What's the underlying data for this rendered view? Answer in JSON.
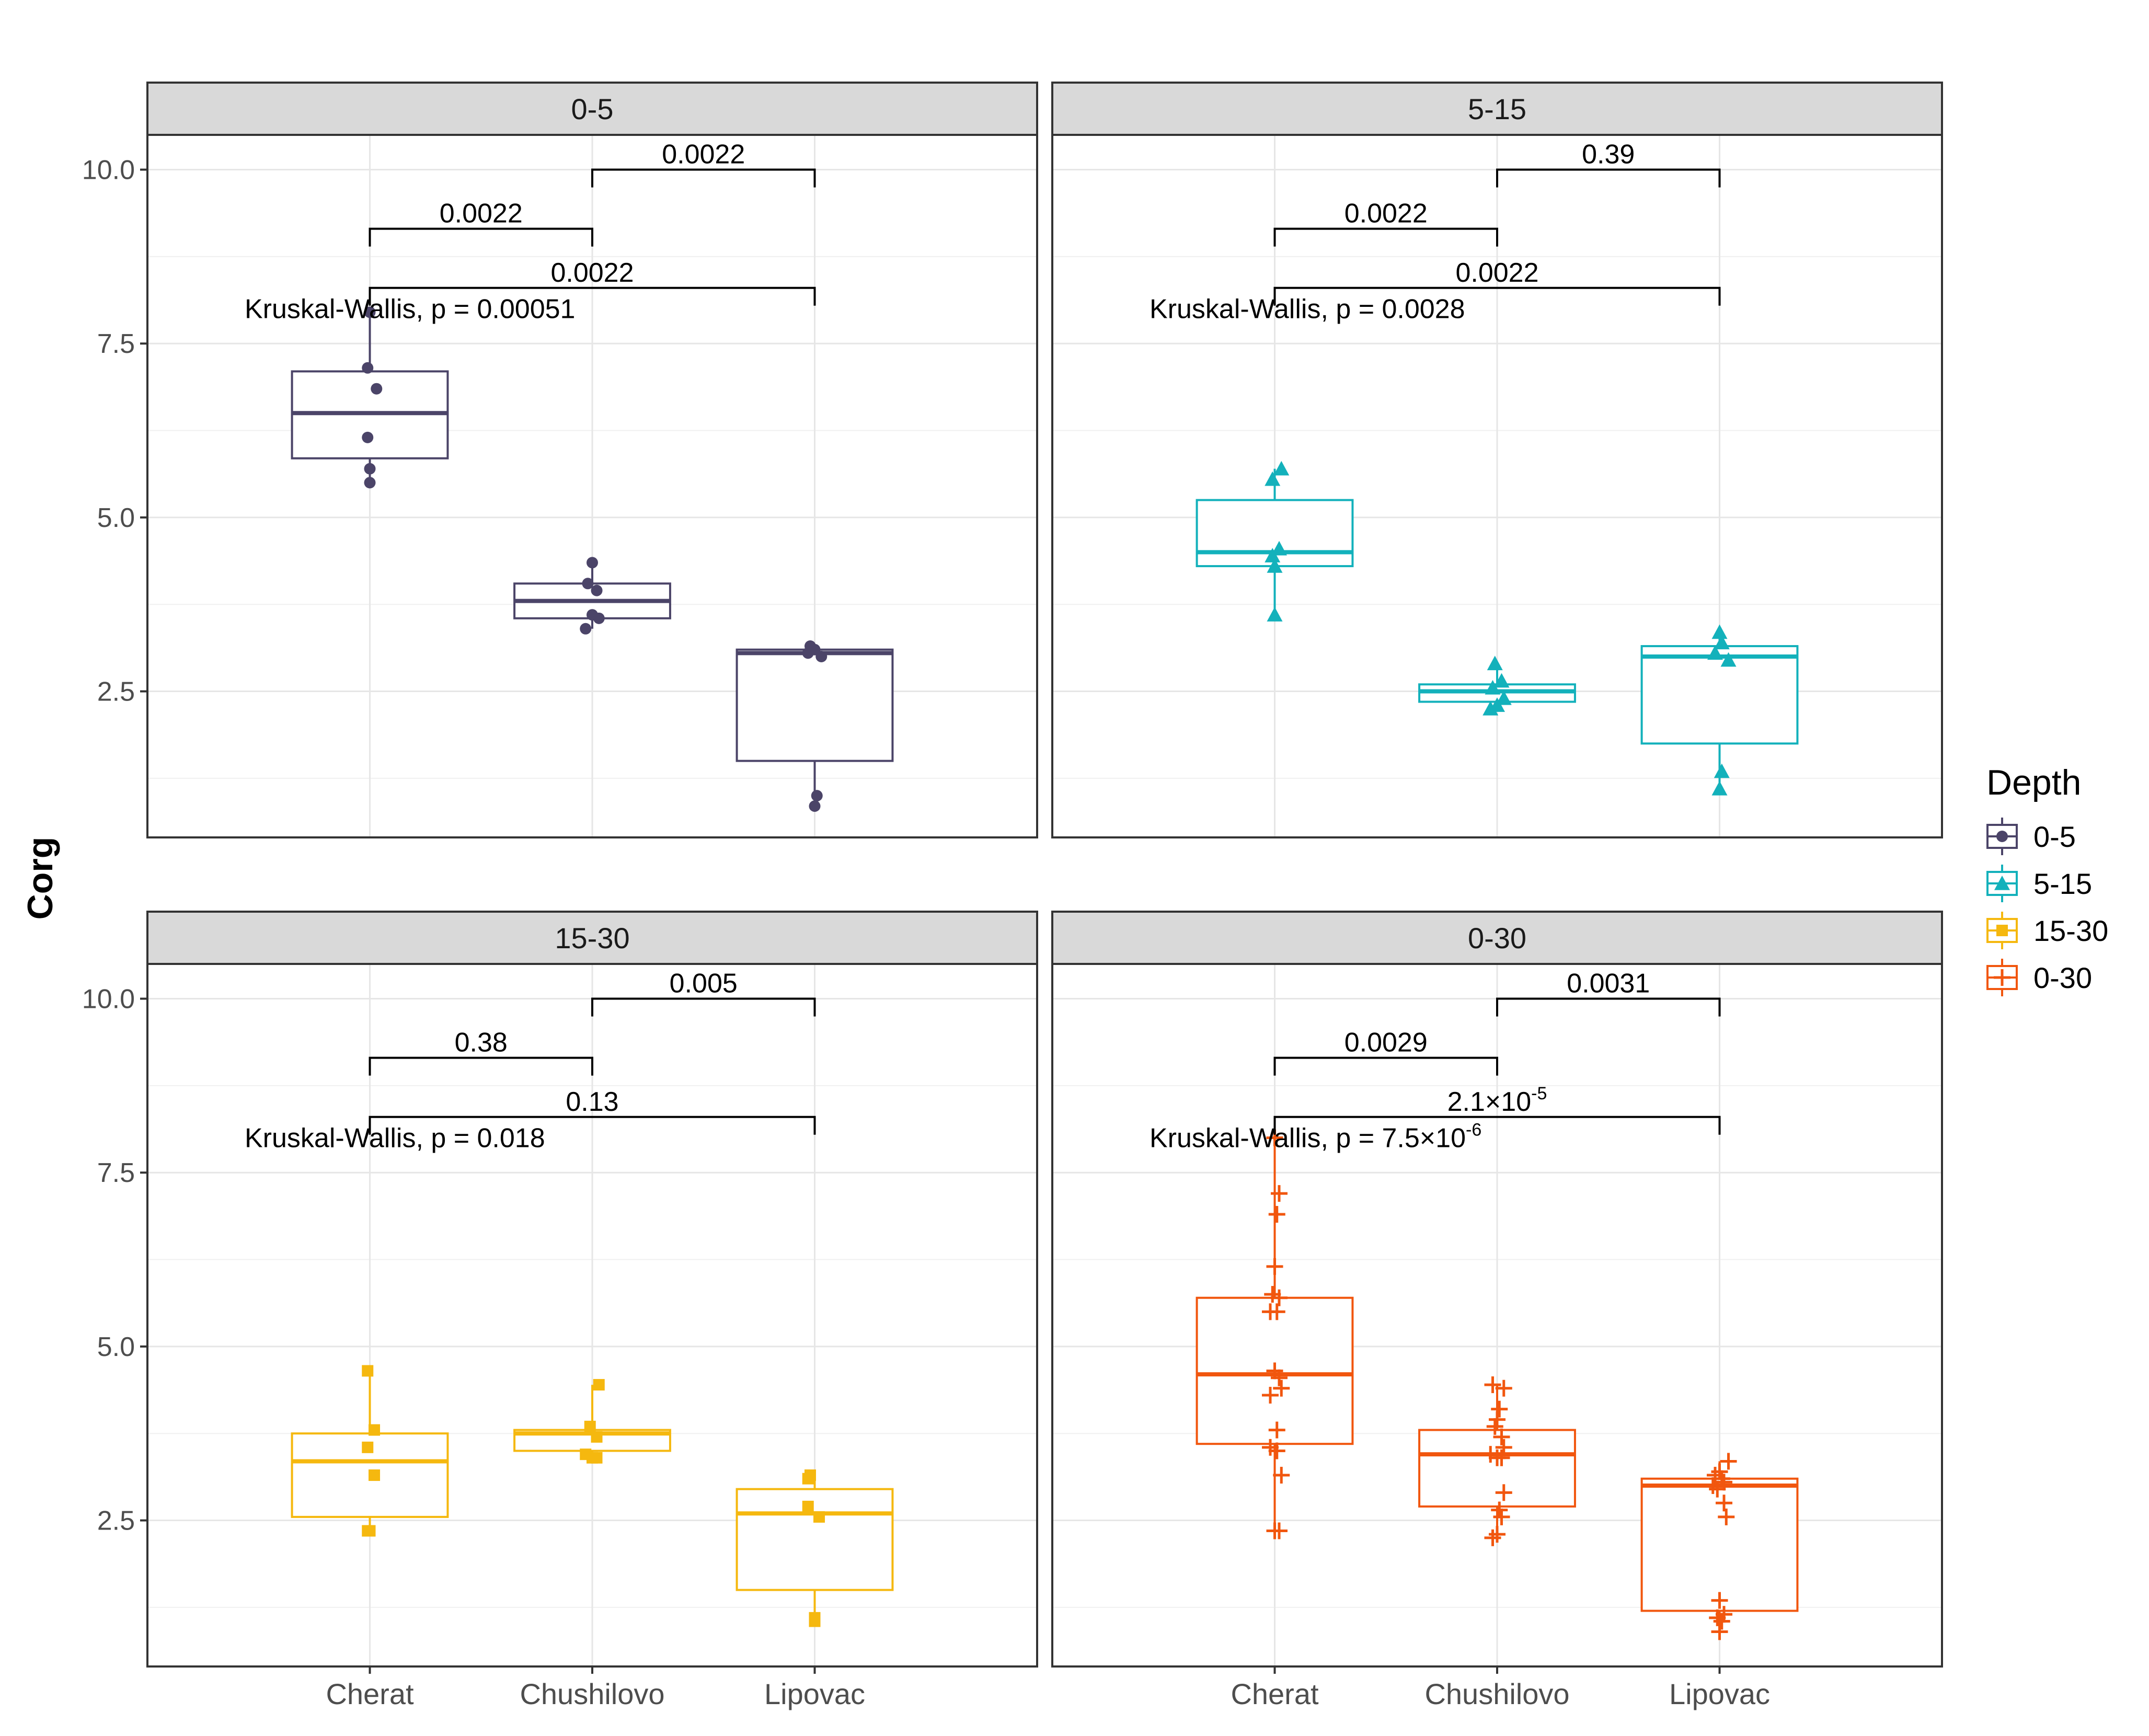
{
  "chart_data": {
    "type": "box",
    "ylabel": "Corg",
    "xlabel": "",
    "categories": [
      "Cherat",
      "Chushilovo",
      "Lipovac"
    ],
    "ylim": [
      0.4,
      10.5
    ],
    "yticks": [
      2.5,
      5.0,
      7.5,
      10.0
    ],
    "ytick_labels": [
      "2.5",
      "5.0",
      "7.5",
      "10.0"
    ],
    "grid": true,
    "legend": {
      "title": "Depth",
      "position": "right",
      "entries": [
        {
          "label": "0-5",
          "color": "#4b4468",
          "shape": "circle"
        },
        {
          "label": "5-15",
          "color": "#13b1bb",
          "shape": "triangle"
        },
        {
          "label": "15-30",
          "color": "#f5b80f",
          "shape": "square"
        },
        {
          "label": "0-30",
          "color": "#f1560e",
          "shape": "plus"
        }
      ]
    },
    "panels": [
      {
        "strip": "0-5",
        "color": "#4b4468",
        "shape": "circle",
        "kruskal": {
          "prefix": "Kruskal-Wallis, p = ",
          "mantissa": "0.00051",
          "exponent": "",
          "y": 8.0
        },
        "comparisons": [
          {
            "from": 1,
            "to": 2,
            "y": 10.0,
            "label": "0.0022",
            "exponent": ""
          },
          {
            "from": 0,
            "to": 1,
            "y": 9.15,
            "label": "0.0022",
            "exponent": ""
          },
          {
            "from": 0,
            "to": 2,
            "y": 8.3,
            "label": "0.0022",
            "exponent": ""
          }
        ],
        "boxes": [
          {
            "category": "Cherat",
            "q1": 5.85,
            "median": 6.5,
            "q3": 7.1,
            "whisker_low": 5.5,
            "whisker_high": 8.0,
            "points": [
              [
                0.0,
                7.95
              ],
              [
                -0.01,
                7.15
              ],
              [
                0.03,
                6.85
              ],
              [
                -0.01,
                6.15
              ],
              [
                0.0,
                5.7
              ],
              [
                0.0,
                5.5
              ]
            ]
          },
          {
            "category": "Chushilovo",
            "q1": 3.55,
            "median": 3.8,
            "q3": 4.05,
            "whisker_low": 3.4,
            "whisker_high": 4.35,
            "points": [
              [
                0.0,
                4.35
              ],
              [
                -0.02,
                4.05
              ],
              [
                0.02,
                3.95
              ],
              [
                0.0,
                3.6
              ],
              [
                0.03,
                3.55
              ],
              [
                -0.03,
                3.4
              ]
            ]
          },
          {
            "category": "Lipovac",
            "q1": 1.5,
            "median": 3.05,
            "q3": 3.1,
            "whisker_low": 0.85,
            "whisker_high": 3.15,
            "points": [
              [
                -0.02,
                3.15
              ],
              [
                0.0,
                3.1
              ],
              [
                -0.03,
                3.05
              ],
              [
                0.03,
                3.0
              ],
              [
                0.01,
                1.0
              ],
              [
                0.0,
                0.85
              ]
            ]
          }
        ]
      },
      {
        "strip": "5-15",
        "color": "#13b1bb",
        "shape": "triangle",
        "kruskal": {
          "prefix": "Kruskal-Wallis, p = ",
          "mantissa": "0.0028",
          "exponent": "",
          "y": 8.0
        },
        "comparisons": [
          {
            "from": 1,
            "to": 2,
            "y": 10.0,
            "label": "0.39",
            "exponent": ""
          },
          {
            "from": 0,
            "to": 1,
            "y": 9.15,
            "label": "0.0022",
            "exponent": ""
          },
          {
            "from": 0,
            "to": 2,
            "y": 8.3,
            "label": "0.0022",
            "exponent": ""
          }
        ],
        "boxes": [
          {
            "category": "Cherat",
            "q1": 4.3,
            "median": 4.5,
            "q3": 5.25,
            "whisker_low": 3.6,
            "whisker_high": 5.7,
            "points": [
              [
                0.03,
                5.7
              ],
              [
                -0.01,
                5.55
              ],
              [
                0.02,
                4.55
              ],
              [
                -0.01,
                4.45
              ],
              [
                0.0,
                4.3
              ],
              [
                0.0,
                3.6
              ]
            ]
          },
          {
            "category": "Chushilovo",
            "q1": 2.35,
            "median": 2.5,
            "q3": 2.6,
            "whisker_low": 2.25,
            "whisker_high": 2.9,
            "points": [
              [
                -0.01,
                2.9
              ],
              [
                0.02,
                2.65
              ],
              [
                -0.02,
                2.55
              ],
              [
                0.03,
                2.4
              ],
              [
                0.0,
                2.3
              ],
              [
                -0.03,
                2.25
              ]
            ]
          },
          {
            "category": "Lipovac",
            "q1": 1.75,
            "median": 3.0,
            "q3": 3.15,
            "whisker_low": 1.1,
            "whisker_high": 3.35,
            "points": [
              [
                0.0,
                3.35
              ],
              [
                0.01,
                3.2
              ],
              [
                -0.02,
                3.05
              ],
              [
                0.04,
                2.95
              ],
              [
                0.01,
                1.35
              ],
              [
                0.0,
                1.1
              ]
            ]
          }
        ]
      },
      {
        "strip": "15-30",
        "color": "#f5b80f",
        "shape": "square",
        "kruskal": {
          "prefix": "Kruskal-Wallis, p = ",
          "mantissa": "0.018",
          "exponent": "",
          "y": 8.0
        },
        "comparisons": [
          {
            "from": 1,
            "to": 2,
            "y": 10.0,
            "label": "0.005",
            "exponent": ""
          },
          {
            "from": 0,
            "to": 1,
            "y": 9.15,
            "label": "0.38",
            "exponent": ""
          },
          {
            "from": 0,
            "to": 2,
            "y": 8.3,
            "label": "0.13",
            "exponent": ""
          }
        ],
        "boxes": [
          {
            "category": "Cherat",
            "q1": 2.55,
            "median": 3.35,
            "q3": 3.75,
            "whisker_low": 2.35,
            "whisker_high": 4.65,
            "points": [
              [
                -0.01,
                4.65
              ],
              [
                0.02,
                3.8
              ],
              [
                -0.01,
                3.55
              ],
              [
                0.02,
                3.15
              ],
              [
                0.0,
                2.35
              ],
              [
                -0.01,
                2.35
              ]
            ]
          },
          {
            "category": "Chushilovo",
            "q1": 3.5,
            "median": 3.75,
            "q3": 3.8,
            "whisker_low": 3.4,
            "whisker_high": 4.45,
            "points": [
              [
                0.03,
                4.45
              ],
              [
                -0.01,
                3.85
              ],
              [
                0.02,
                3.7
              ],
              [
                -0.03,
                3.45
              ],
              [
                0.0,
                3.4
              ],
              [
                0.02,
                3.4
              ]
            ]
          },
          {
            "category": "Lipovac",
            "q1": 1.5,
            "median": 2.6,
            "q3": 2.95,
            "whisker_low": 1.05,
            "whisker_high": 3.15,
            "points": [
              [
                -0.02,
                3.15
              ],
              [
                -0.03,
                3.1
              ],
              [
                -0.03,
                2.7
              ],
              [
                0.02,
                2.55
              ],
              [
                0.0,
                1.1
              ],
              [
                0.0,
                1.05
              ]
            ]
          }
        ]
      },
      {
        "strip": "0-30",
        "color": "#f1560e",
        "shape": "plus",
        "kruskal": {
          "prefix": "Kruskal-Wallis, p = ",
          "mantissa": "7.5×10",
          "exponent": "-6",
          "y": 8.0
        },
        "comparisons": [
          {
            "from": 1,
            "to": 2,
            "y": 10.0,
            "label": "0.0031",
            "exponent": ""
          },
          {
            "from": 0,
            "to": 1,
            "y": 9.15,
            "label": "0.0029",
            "exponent": ""
          },
          {
            "from": 0,
            "to": 2,
            "y": 8.3,
            "label": "2.1×10",
            "exponent": "-5"
          }
        ],
        "boxes": [
          {
            "category": "Cherat",
            "q1": 3.6,
            "median": 4.6,
            "q3": 5.7,
            "whisker_low": 2.35,
            "whisker_high": 8.0,
            "points": [
              [
                0.0,
                8.0
              ],
              [
                0.02,
                7.2
              ],
              [
                0.01,
                6.9
              ],
              [
                0.0,
                6.15
              ],
              [
                -0.01,
                5.75
              ],
              [
                0.02,
                5.7
              ],
              [
                -0.02,
                5.5
              ],
              [
                0.01,
                5.5
              ],
              [
                0.0,
                4.65
              ],
              [
                0.02,
                4.55
              ],
              [
                0.03,
                4.4
              ],
              [
                -0.02,
                4.3
              ],
              [
                0.01,
                3.8
              ],
              [
                -0.02,
                3.55
              ],
              [
                0.01,
                3.5
              ],
              [
                0.03,
                3.15
              ],
              [
                0.0,
                2.35
              ],
              [
                0.02,
                2.35
              ]
            ]
          },
          {
            "category": "Chushilovo",
            "q1": 2.7,
            "median": 3.45,
            "q3": 3.8,
            "whisker_low": 2.25,
            "whisker_high": 4.45,
            "points": [
              [
                0.03,
                4.4
              ],
              [
                -0.02,
                4.45
              ],
              [
                0.01,
                4.1
              ],
              [
                0.0,
                3.95
              ],
              [
                -0.01,
                3.85
              ],
              [
                0.02,
                3.7
              ],
              [
                0.03,
                3.55
              ],
              [
                -0.03,
                3.45
              ],
              [
                0.0,
                3.4
              ],
              [
                0.02,
                3.4
              ],
              [
                0.03,
                2.9
              ],
              [
                0.01,
                2.65
              ],
              [
                0.02,
                2.55
              ],
              [
                0.0,
                2.3
              ],
              [
                -0.02,
                2.25
              ]
            ]
          },
          {
            "category": "Lipovac",
            "q1": 1.2,
            "median": 3.0,
            "q3": 3.1,
            "whisker_low": 0.9,
            "whisker_high": 3.35,
            "points": [
              [
                0.04,
                3.35
              ],
              [
                0.0,
                3.2
              ],
              [
                -0.02,
                3.15
              ],
              [
                0.01,
                3.1
              ],
              [
                0.02,
                3.05
              ],
              [
                -0.03,
                3.0
              ],
              [
                -0.01,
                2.95
              ],
              [
                0.02,
                2.75
              ],
              [
                0.03,
                2.55
              ],
              [
                0.0,
                1.35
              ],
              [
                0.02,
                1.15
              ],
              [
                -0.01,
                1.1
              ],
              [
                0.01,
                1.05
              ],
              [
                0.0,
                0.9
              ]
            ]
          }
        ]
      }
    ]
  }
}
